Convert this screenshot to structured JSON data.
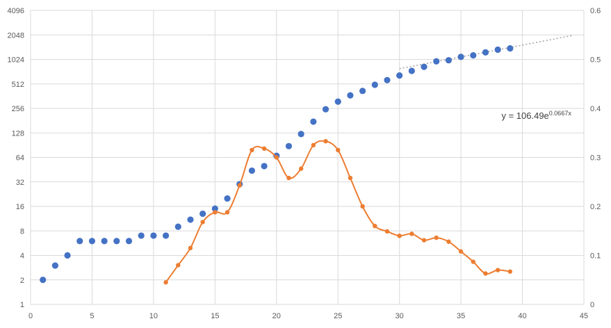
{
  "chart_data": {
    "type": "scatter",
    "x_axis": {
      "min": 0,
      "max": 45,
      "ticks": [
        0,
        5,
        10,
        15,
        20,
        25,
        30,
        35,
        40,
        45
      ]
    },
    "y_axis_left": {
      "scale": "log2",
      "min": 1,
      "max": 4096,
      "ticks": [
        1,
        2,
        4,
        8,
        16,
        32,
        64,
        128,
        256,
        512,
        1024,
        2048,
        4096
      ]
    },
    "y_axis_right": {
      "min": 0,
      "max": 0.6,
      "ticks": [
        0,
        0.1,
        0.2,
        0.3,
        0.4,
        0.5,
        0.6
      ]
    },
    "grid": {
      "horizontal": true,
      "vertical": true
    },
    "series": [
      {
        "axis": "left",
        "style": "markers",
        "color": "#4472C4",
        "x": [
          1,
          2,
          3,
          4,
          5,
          6,
          7,
          8,
          9,
          10,
          11,
          12,
          13,
          14,
          15,
          16,
          17,
          18,
          19,
          20,
          21,
          22,
          23,
          24,
          25,
          26,
          27,
          28,
          29,
          30,
          31,
          32,
          33,
          34,
          35,
          36,
          37,
          38,
          39
        ],
        "y": [
          2,
          3,
          4,
          6,
          6,
          6,
          6,
          6,
          7,
          7,
          7,
          9,
          11,
          13,
          15,
          20,
          30,
          44,
          50,
          67,
          88,
          124,
          176,
          250,
          310,
          370,
          420,
          500,
          570,
          650,
          740,
          830,
          970,
          1000,
          1100,
          1150,
          1250,
          1350,
          1400
        ]
      },
      {
        "axis": "right",
        "style": "smooth-line-markers",
        "color": "#ED7D31",
        "x": [
          11,
          12,
          13,
          14,
          15,
          16,
          17,
          18,
          19,
          20,
          21,
          22,
          23,
          24,
          25,
          26,
          27,
          28,
          29,
          30,
          31,
          32,
          33,
          34,
          35,
          36,
          37,
          38,
          39
        ],
        "y": [
          0.045,
          0.08,
          0.115,
          0.168,
          0.188,
          0.188,
          0.243,
          0.315,
          0.318,
          0.3,
          0.258,
          0.277,
          0.325,
          0.333,
          0.315,
          0.258,
          0.2,
          0.16,
          0.149,
          0.14,
          0.144,
          0.131,
          0.136,
          0.128,
          0.108,
          0.087,
          0.063,
          0.07,
          0.067
        ]
      }
    ],
    "trendline": {
      "type": "exponential",
      "series_index": 0,
      "a": 106.49,
      "b": 0.0667,
      "x_start": 30,
      "x_end": 44,
      "color": "#A6A6A6",
      "equation_base": "y = 106.49e",
      "equation_exponent": "0.0667x"
    }
  }
}
